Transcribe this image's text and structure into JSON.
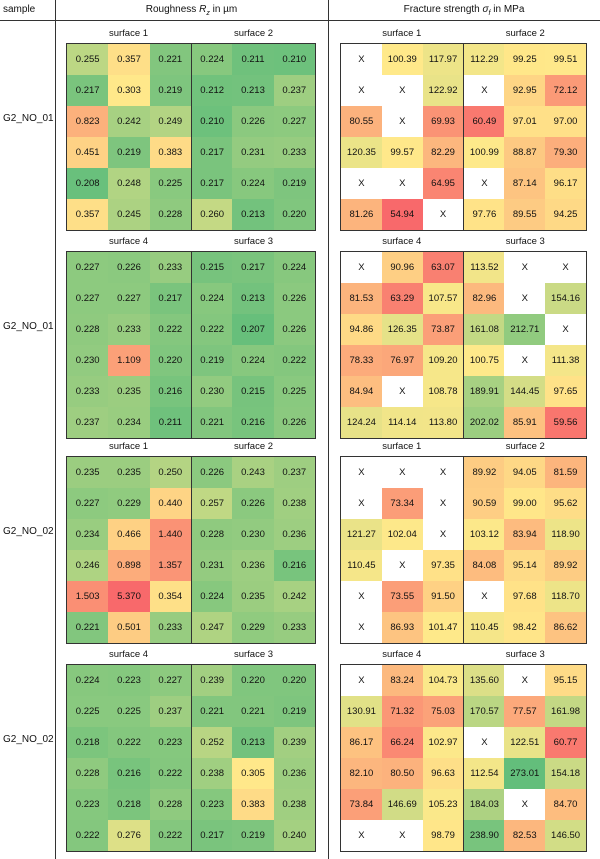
{
  "header": {
    "sample": "sample",
    "roughness": "Roughness R_z in µm",
    "fracture": "Fracture strength σ_f in MPa"
  },
  "colors": {
    "low": "#63be7b",
    "mid": "#ffe98a",
    "high": "#f8696b",
    "x_cell": "#ffffff"
  },
  "groups": [
    {
      "sample": "G2_NO_01",
      "roughness": {
        "surfaces": [
          "surface 1",
          "surface 2"
        ],
        "rows": [
          [
            "0.255",
            "0.357",
            "0.221",
            "0.224",
            "0.211",
            "0.210"
          ],
          [
            "0.217",
            "0.303",
            "0.219",
            "0.212",
            "0.213",
            "0.237"
          ],
          [
            "0.823",
            "0.242",
            "0.249",
            "0.210",
            "0.226",
            "0.227"
          ],
          [
            "0.451",
            "0.219",
            "0.383",
            "0.217",
            "0.231",
            "0.233"
          ],
          [
            "0.208",
            "0.248",
            "0.225",
            "0.217",
            "0.224",
            "0.219"
          ],
          [
            "0.357",
            "0.245",
            "0.228",
            "0.260",
            "0.213",
            "0.220"
          ]
        ]
      },
      "fracture": {
        "surfaces": [
          "surface 1",
          "surface 2"
        ],
        "rows": [
          [
            "X",
            "100.39",
            "117.97",
            "112.29",
            "99.25",
            "99.51"
          ],
          [
            "X",
            "X",
            "122.92",
            "X",
            "92.95",
            "72.12"
          ],
          [
            "80.55",
            "X",
            "69.93",
            "60.49",
            "97.01",
            "97.00"
          ],
          [
            "120.35",
            "99.57",
            "82.29",
            "100.99",
            "88.87",
            "79.30"
          ],
          [
            "X",
            "X",
            "64.95",
            "X",
            "87.14",
            "96.17"
          ],
          [
            "81.26",
            "54.94",
            "X",
            "97.76",
            "89.55",
            "94.25"
          ]
        ]
      }
    },
    {
      "sample": "G2_NO_01",
      "roughness": {
        "surfaces": [
          "surface 4",
          "surface 3"
        ],
        "rows": [
          [
            "0.227",
            "0.226",
            "0.233",
            "0.215",
            "0.217",
            "0.224"
          ],
          [
            "0.227",
            "0.227",
            "0.217",
            "0.224",
            "0.213",
            "0.226"
          ],
          [
            "0.228",
            "0.233",
            "0.222",
            "0.222",
            "0.207",
            "0.226"
          ],
          [
            "0.230",
            "1.109",
            "0.220",
            "0.219",
            "0.224",
            "0.222"
          ],
          [
            "0.233",
            "0.235",
            "0.216",
            "0.230",
            "0.215",
            "0.225"
          ],
          [
            "0.237",
            "0.234",
            "0.211",
            "0.221",
            "0.216",
            "0.226"
          ]
        ]
      },
      "fracture": {
        "surfaces": [
          "surface 4",
          "surface 3"
        ],
        "rows": [
          [
            "X",
            "90.96",
            "63.07",
            "113.52",
            "X",
            "X"
          ],
          [
            "81.53",
            "63.29",
            "107.57",
            "82.96",
            "X",
            "154.16"
          ],
          [
            "94.86",
            "126.35",
            "73.87",
            "161.08",
            "212.71",
            "X"
          ],
          [
            "78.33",
            "76.97",
            "109.20",
            "100.75",
            "X",
            "111.38"
          ],
          [
            "84.94",
            "X",
            "108.78",
            "189.91",
            "144.45",
            "97.65"
          ],
          [
            "124.24",
            "114.14",
            "113.80",
            "202.02",
            "85.91",
            "59.56"
          ]
        ]
      }
    },
    {
      "sample": "G2_NO_02",
      "roughness": {
        "surfaces": [
          "surface 1",
          "surface 2"
        ],
        "rows": [
          [
            "0.235",
            "0.235",
            "0.250",
            "0.226",
            "0.243",
            "0.237"
          ],
          [
            "0.227",
            "0.229",
            "0.440",
            "0.257",
            "0.226",
            "0.238"
          ],
          [
            "0.234",
            "0.466",
            "1.440",
            "0.228",
            "0.230",
            "0.236"
          ],
          [
            "0.246",
            "0.898",
            "1.357",
            "0.231",
            "0.236",
            "0.216"
          ],
          [
            "1.503",
            "5.370",
            "0.354",
            "0.224",
            "0.235",
            "0.242"
          ],
          [
            "0.221",
            "0.501",
            "0.233",
            "0.247",
            "0.229",
            "0.233"
          ]
        ]
      },
      "fracture": {
        "surfaces": [
          "surface 1",
          "surface 2"
        ],
        "rows": [
          [
            "X",
            "X",
            "X",
            "89.92",
            "94.05",
            "81.59"
          ],
          [
            "X",
            "73.34",
            "X",
            "90.59",
            "99.00",
            "95.62"
          ],
          [
            "121.27",
            "102.04",
            "X",
            "103.12",
            "83.94",
            "118.90"
          ],
          [
            "110.45",
            "X",
            "97.35",
            "84.08",
            "95.14",
            "89.92"
          ],
          [
            "X",
            "73.55",
            "91.50",
            "X",
            "97.68",
            "118.70"
          ],
          [
            "X",
            "86.93",
            "101.47",
            "110.45",
            "98.42",
            "86.62"
          ]
        ]
      }
    },
    {
      "sample": "G2_NO_02",
      "roughness": {
        "surfaces": [
          "surface 4",
          "surface 3"
        ],
        "rows": [
          [
            "0.224",
            "0.223",
            "0.227",
            "0.239",
            "0.220",
            "0.220"
          ],
          [
            "0.225",
            "0.225",
            "0.237",
            "0.221",
            "0.221",
            "0.219"
          ],
          [
            "0.218",
            "0.222",
            "0.223",
            "0.252",
            "0.213",
            "0.239"
          ],
          [
            "0.228",
            "0.216",
            "0.222",
            "0.238",
            "0.305",
            "0.236"
          ],
          [
            "0.223",
            "0.218",
            "0.228",
            "0.223",
            "0.383",
            "0.238"
          ],
          [
            "0.222",
            "0.276",
            "0.222",
            "0.217",
            "0.219",
            "0.240"
          ]
        ]
      },
      "fracture": {
        "surfaces": [
          "surface 4",
          "surface 3"
        ],
        "rows": [
          [
            "X",
            "83.24",
            "104.73",
            "135.60",
            "X",
            "95.15"
          ],
          [
            "130.91",
            "71.32",
            "75.03",
            "170.57",
            "77.57",
            "161.98"
          ],
          [
            "86.17",
            "66.24",
            "102.97",
            "X",
            "122.51",
            "60.77"
          ],
          [
            "82.10",
            "80.50",
            "96.63",
            "112.54",
            "273.01",
            "154.18"
          ],
          [
            "73.84",
            "146.69",
            "105.23",
            "184.03",
            "X",
            "84.70"
          ],
          [
            "X",
            "X",
            "98.79",
            "238.90",
            "82.53",
            "146.50"
          ]
        ]
      }
    }
  ]
}
